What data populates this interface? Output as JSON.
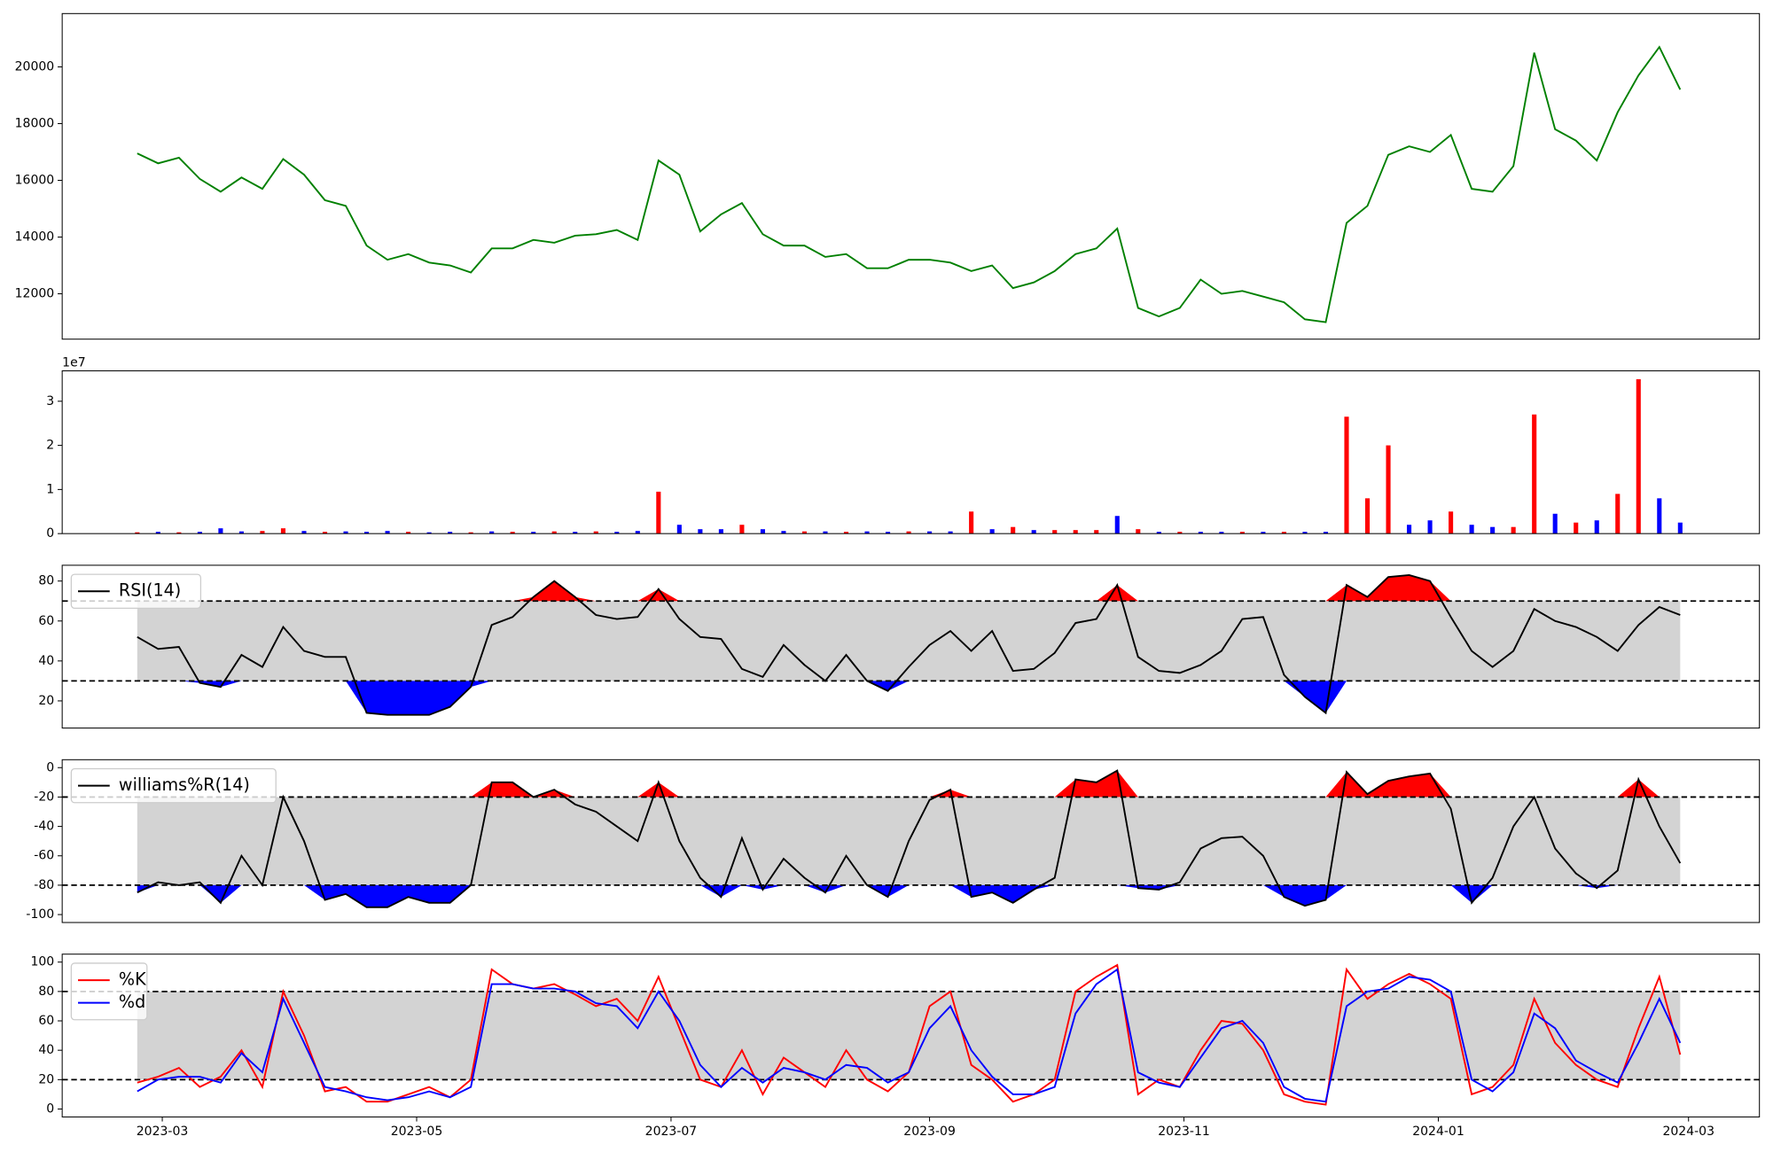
{
  "chart_data": [
    {
      "type": "line",
      "x": [
        "2023-02-23",
        "2023-02-28",
        "2023-03-05",
        "2023-03-10",
        "2023-03-15",
        "2023-03-20",
        "2023-03-25",
        "2023-03-30",
        "2023-04-04",
        "2023-04-09",
        "2023-04-14",
        "2023-04-19",
        "2023-04-24",
        "2023-04-29",
        "2023-05-04",
        "2023-05-09",
        "2023-05-14",
        "2023-05-19",
        "2023-05-24",
        "2023-05-29",
        "2023-06-03",
        "2023-06-08",
        "2023-06-13",
        "2023-06-18",
        "2023-06-23",
        "2023-06-28",
        "2023-07-03",
        "2023-07-08",
        "2023-07-13",
        "2023-07-18",
        "2023-07-23",
        "2023-07-28",
        "2023-08-02",
        "2023-08-07",
        "2023-08-12",
        "2023-08-17",
        "2023-08-22",
        "2023-08-27",
        "2023-09-01",
        "2023-09-06",
        "2023-09-11",
        "2023-09-16",
        "2023-09-21",
        "2023-09-26",
        "2023-10-01",
        "2023-10-06",
        "2023-10-11",
        "2023-10-16",
        "2023-10-21",
        "2023-10-26",
        "2023-10-31",
        "2023-11-05",
        "2023-11-10",
        "2023-11-15",
        "2023-11-20",
        "2023-11-25",
        "2023-11-30",
        "2023-12-05",
        "2023-12-10",
        "2023-12-15",
        "2023-12-20",
        "2023-12-25",
        "2023-12-30",
        "2024-01-04",
        "2024-01-09",
        "2024-01-14",
        "2024-01-19",
        "2024-01-24",
        "2024-01-29",
        "2024-02-03",
        "2024-02-08",
        "2024-02-13",
        "2024-02-18",
        "2024-02-23",
        "2024-02-28"
      ],
      "xlim": [
        "2023-02-05",
        "2024-03-18"
      ],
      "series": [
        {
          "color": "#008000",
          "values": [
            16950,
            16600,
            16800,
            16050,
            15600,
            16100,
            15700,
            16750,
            16200,
            15300,
            15100,
            13700,
            13200,
            13400,
            13100,
            13000,
            12750,
            13600,
            13600,
            13900,
            13800,
            14050,
            14100,
            14250,
            13900,
            16700,
            16200,
            14200,
            14800,
            15200,
            14100,
            13700,
            13700,
            13300,
            13400,
            12900,
            12900,
            13200,
            13200,
            13100,
            12800,
            13000,
            12200,
            12400,
            12800,
            13400,
            13600,
            14300,
            11500,
            11200,
            11500,
            12500,
            12000,
            12100,
            11900,
            11700,
            11100,
            11000,
            14500,
            15100,
            16900,
            17200,
            17000,
            17600,
            15700,
            15600,
            16500,
            20500,
            17800,
            17400,
            16700,
            18400,
            19700,
            20700,
            19200
          ]
        }
      ],
      "ylim": [
        10400,
        21880
      ],
      "yticks": [
        12000,
        14000,
        16000,
        18000,
        20000
      ]
    },
    {
      "type": "bar",
      "offset_label": "1e7",
      "values": [
        0.03,
        0.04,
        0.03,
        0.04,
        0.12,
        0.05,
        0.06,
        0.12,
        0.06,
        0.04,
        0.05,
        0.04,
        0.06,
        0.04,
        0.03,
        0.04,
        0.03,
        0.05,
        0.04,
        0.04,
        0.05,
        0.04,
        0.05,
        0.04,
        0.06,
        0.95,
        0.2,
        0.1,
        0.1,
        0.2,
        0.1,
        0.06,
        0.05,
        0.05,
        0.04,
        0.05,
        0.04,
        0.05,
        0.05,
        0.05,
        0.5,
        0.1,
        0.15,
        0.08,
        0.08,
        0.08,
        0.08,
        0.4,
        0.1,
        0.04,
        0.04,
        0.04,
        0.04,
        0.04,
        0.04,
        0.04,
        0.04,
        0.04,
        2.65,
        0.8,
        2.0,
        0.2,
        0.3,
        0.5,
        0.2,
        0.15,
        0.15,
        2.7,
        0.45,
        0.25,
        0.3,
        0.9,
        3.5,
        0.8,
        0.25
      ],
      "colors": [
        "#ff0000",
        "#0000ff",
        "#ff0000",
        "#0000ff",
        "#0000ff",
        "#0000ff",
        "#ff0000",
        "#ff0000",
        "#0000ff",
        "#ff0000",
        "#0000ff",
        "#0000ff",
        "#0000ff",
        "#ff0000",
        "#0000ff",
        "#0000ff",
        "#ff0000",
        "#0000ff",
        "#ff0000",
        "#0000ff",
        "#ff0000",
        "#0000ff",
        "#ff0000",
        "#0000ff",
        "#0000ff",
        "#ff0000",
        "#0000ff",
        "#0000ff",
        "#0000ff",
        "#ff0000",
        "#0000ff",
        "#0000ff",
        "#ff0000",
        "#0000ff",
        "#ff0000",
        "#0000ff",
        "#0000ff",
        "#ff0000",
        "#0000ff",
        "#0000ff",
        "#ff0000",
        "#0000ff",
        "#ff0000",
        "#0000ff",
        "#ff0000",
        "#ff0000",
        "#ff0000",
        "#0000ff",
        "#ff0000",
        "#0000ff",
        "#ff0000",
        "#0000ff",
        "#0000ff",
        "#ff0000",
        "#0000ff",
        "#ff0000",
        "#0000ff",
        "#0000ff",
        "#ff0000",
        "#ff0000",
        "#ff0000",
        "#0000ff",
        "#0000ff",
        "#ff0000",
        "#0000ff",
        "#0000ff",
        "#ff0000",
        "#ff0000",
        "#0000ff",
        "#ff0000",
        "#0000ff",
        "#ff0000",
        "#ff0000",
        "#0000ff",
        "#0000ff"
      ],
      "ylim": [
        0,
        3.69
      ],
      "yticks": [
        0,
        1,
        2,
        3
      ]
    },
    {
      "type": "line",
      "legend": "upper left",
      "series": [
        {
          "name": "RSI(14)",
          "color": "#000000",
          "values": [
            52,
            46,
            47,
            29,
            27,
            43,
            37,
            57,
            45,
            42,
            42,
            14,
            13,
            13,
            13,
            17,
            27,
            58,
            62,
            72,
            80,
            72,
            63,
            61,
            62,
            76,
            61,
            52,
            51,
            36,
            32,
            48,
            38,
            30,
            43,
            30,
            25,
            37,
            48,
            55,
            45,
            55,
            35,
            36,
            44,
            59,
            61,
            78,
            42,
            35,
            34,
            38,
            45,
            61,
            62,
            33,
            22,
            14,
            78,
            72,
            82,
            83,
            80,
            62,
            45,
            37,
            45,
            66,
            60,
            57,
            52,
            45,
            58,
            67,
            63
          ]
        }
      ],
      "hlines": [
        30,
        70
      ],
      "band_color": "#d3d3d3",
      "fill_above": "#ff0000",
      "fill_below": "#0000ff",
      "ylim": [
        6.4,
        87.9
      ],
      "yticks": [
        20,
        40,
        60,
        80
      ]
    },
    {
      "type": "line",
      "legend": "upper left",
      "series": [
        {
          "name": "williams%R(14)",
          "color": "#000000",
          "values": [
            -85,
            -78,
            -80,
            -78,
            -92,
            -60,
            -80,
            -20,
            -50,
            -90,
            -86,
            -95,
            -95,
            -88,
            -92,
            -92,
            -80,
            -10,
            -10,
            -20,
            -15,
            -25,
            -30,
            -40,
            -50,
            -10,
            -50,
            -75,
            -88,
            -48,
            -83,
            -62,
            -75,
            -85,
            -60,
            -80,
            -88,
            -50,
            -22,
            -15,
            -88,
            -85,
            -92,
            -83,
            -75,
            -8,
            -10,
            -2,
            -82,
            -83,
            -78,
            -55,
            -48,
            -47,
            -60,
            -88,
            -94,
            -90,
            -3,
            -18,
            -9,
            -6,
            -4,
            -28,
            -92,
            -75,
            -40,
            -20,
            -55,
            -72,
            -82,
            -70,
            -8,
            -40,
            -65
          ]
        }
      ],
      "hlines": [
        -80,
        -20
      ],
      "band_color": "#d3d3d3",
      "fill_above": "#ff0000",
      "fill_below": "#0000ff",
      "ylim": [
        -105.4,
        5.4
      ],
      "yticks": [
        -100,
        -80,
        -60,
        -40,
        -20,
        0
      ]
    },
    {
      "type": "line",
      "legend": "upper left",
      "series": [
        {
          "name": "%K",
          "color": "#ff0000",
          "values": [
            18,
            22,
            28,
            15,
            22,
            40,
            15,
            80,
            50,
            12,
            15,
            5,
            5,
            10,
            15,
            8,
            20,
            95,
            85,
            82,
            85,
            78,
            70,
            75,
            60,
            90,
            55,
            20,
            15,
            40,
            10,
            35,
            25,
            15,
            40,
            20,
            12,
            25,
            70,
            80,
            30,
            20,
            5,
            10,
            20,
            80,
            90,
            98,
            10,
            20,
            15,
            40,
            60,
            58,
            40,
            10,
            5,
            3,
            95,
            75,
            85,
            92,
            85,
            75,
            10,
            15,
            30,
            75,
            45,
            30,
            20,
            15,
            55,
            90,
            37
          ]
        },
        {
          "name": "%d",
          "color": "#0000ff",
          "values": [
            12,
            20,
            22,
            22,
            18,
            38,
            25,
            75,
            45,
            15,
            12,
            8,
            6,
            8,
            12,
            8,
            15,
            85,
            85,
            82,
            82,
            80,
            72,
            70,
            55,
            80,
            60,
            30,
            15,
            28,
            18,
            28,
            25,
            20,
            30,
            28,
            18,
            25,
            55,
            70,
            40,
            22,
            10,
            10,
            15,
            65,
            85,
            95,
            25,
            18,
            15,
            35,
            55,
            60,
            45,
            15,
            7,
            5,
            70,
            80,
            82,
            90,
            88,
            80,
            20,
            12,
            25,
            65,
            55,
            33,
            25,
            18,
            45,
            75,
            45
          ]
        }
      ],
      "hlines": [
        20,
        80
      ],
      "band_color": "#d3d3d3",
      "ylim": [
        -5.4,
        105.4
      ],
      "yticks": [
        0,
        20,
        40,
        60,
        80,
        100
      ],
      "xticks": [
        {
          "value": "2023-03-01",
          "label": "2023-03"
        },
        {
          "value": "2023-05-01",
          "label": "2023-05"
        },
        {
          "value": "2023-07-01",
          "label": "2023-07"
        },
        {
          "value": "2023-09-01",
          "label": "2023-09"
        },
        {
          "value": "2023-11-01",
          "label": "2023-11"
        },
        {
          "value": "2024-01-01",
          "label": "2024-01"
        },
        {
          "value": "2024-03-01",
          "label": "2024-03"
        }
      ]
    }
  ]
}
